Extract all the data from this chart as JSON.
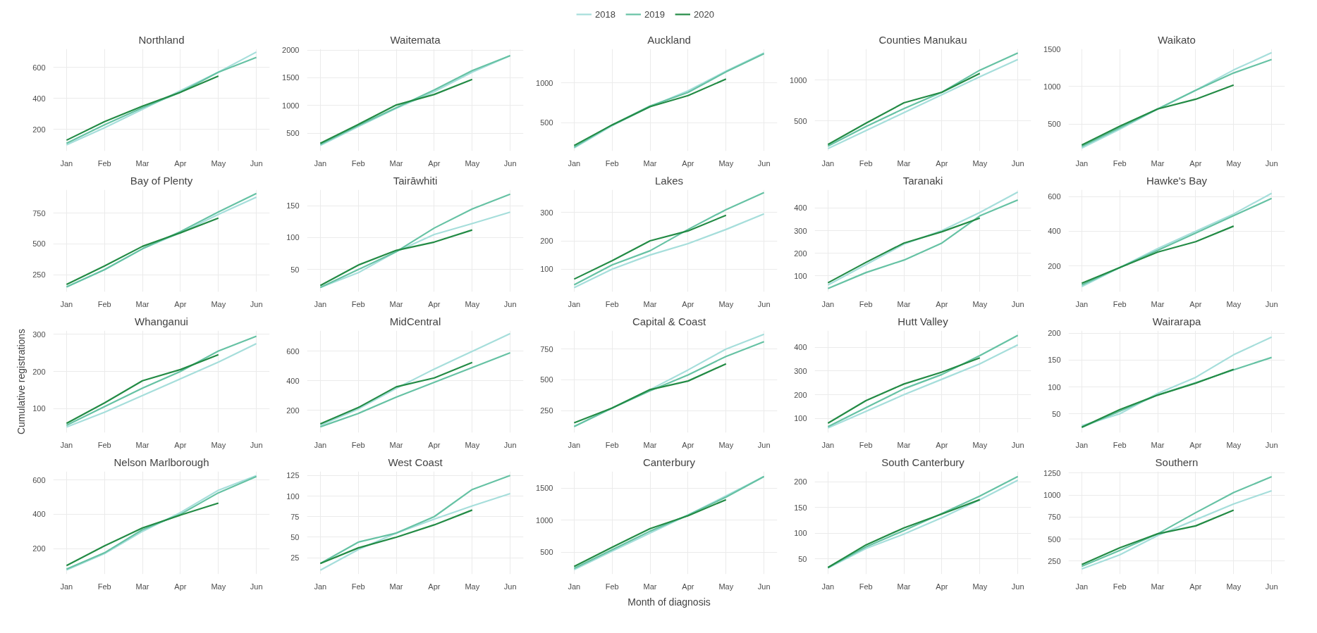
{
  "chart_data": [
    {
      "type": "line",
      "title": "Northland",
      "legend": "top",
      "grid": true,
      "categories": [
        "Jan",
        "Feb",
        "Mar",
        "Apr",
        "May",
        "Jun"
      ],
      "ylim": [
        60,
        720
      ],
      "yticks": [
        200,
        400,
        600
      ],
      "series": [
        {
          "name": "2018",
          "color": "#a6dedb",
          "values": [
            100,
            210,
            330,
            450,
            570,
            700
          ]
        },
        {
          "name": "2019",
          "color": "#66c2a4",
          "values": [
            110,
            230,
            340,
            440,
            570,
            665
          ]
        },
        {
          "name": "2020",
          "color": "#238b45",
          "values": [
            130,
            250,
            350,
            440,
            545,
            null
          ]
        }
      ]
    },
    {
      "type": "line",
      "title": "Waitemata",
      "grid": true,
      "categories": [
        "Jan",
        "Feb",
        "Mar",
        "Apr",
        "May",
        "Jun"
      ],
      "ylim": [
        180,
        2020
      ],
      "yticks": [
        500,
        1000,
        1500,
        2000
      ],
      "series": [
        {
          "color": "#a6dedb",
          "values": [
            280,
            620,
            950,
            1250,
            1600,
            1900
          ]
        },
        {
          "color": "#66c2a4",
          "values": [
            300,
            640,
            960,
            1280,
            1630,
            1900
          ]
        },
        {
          "color": "#238b45",
          "values": [
            320,
            660,
            1010,
            1200,
            1470,
            null
          ]
        }
      ]
    },
    {
      "type": "line",
      "title": "Auckland",
      "grid": true,
      "categories": [
        "Jan",
        "Feb",
        "Mar",
        "Apr",
        "May",
        "Jun"
      ],
      "ylim": [
        140,
        1430
      ],
      "yticks": [
        500,
        1000
      ],
      "series": [
        {
          "color": "#a6dedb",
          "values": [
            180,
            460,
            700,
            900,
            1150,
            1380
          ]
        },
        {
          "color": "#66c2a4",
          "values": [
            190,
            470,
            710,
            880,
            1140,
            1370
          ]
        },
        {
          "color": "#238b45",
          "values": [
            210,
            470,
            700,
            840,
            1050,
            null
          ]
        }
      ]
    },
    {
      "type": "line",
      "title": "Counties Manukau",
      "grid": true,
      "categories": [
        "Jan",
        "Feb",
        "Mar",
        "Apr",
        "May",
        "Jun"
      ],
      "ylim": [
        130,
        1380
      ],
      "yticks": [
        500,
        1000
      ],
      "series": [
        {
          "color": "#a6dedb",
          "values": [
            160,
            380,
            600,
            820,
            1040,
            1250
          ]
        },
        {
          "color": "#66c2a4",
          "values": [
            190,
            430,
            650,
            850,
            1120,
            1330
          ]
        },
        {
          "color": "#238b45",
          "values": [
            210,
            470,
            720,
            850,
            1080,
            null
          ]
        }
      ]
    },
    {
      "type": "line",
      "title": "Waikato",
      "grid": true,
      "categories": [
        "Jan",
        "Feb",
        "Mar",
        "Apr",
        "May",
        "Jun"
      ],
      "ylim": [
        140,
        1500
      ],
      "yticks": [
        500,
        1000,
        1500
      ],
      "series": [
        {
          "color": "#a6dedb",
          "values": [
            180,
            430,
            700,
            950,
            1220,
            1450
          ]
        },
        {
          "color": "#66c2a4",
          "values": [
            200,
            450,
            700,
            950,
            1180,
            1360
          ]
        },
        {
          "color": "#238b45",
          "values": [
            220,
            470,
            700,
            830,
            1020,
            null
          ]
        }
      ]
    },
    {
      "type": "line",
      "title": "Bay of Plenty",
      "grid": true,
      "categories": [
        "Jan",
        "Feb",
        "Mar",
        "Apr",
        "May",
        "Jun"
      ],
      "ylim": [
        110,
        940
      ],
      "yticks": [
        250,
        500,
        750
      ],
      "series": [
        {
          "color": "#a6dedb",
          "values": [
            150,
            290,
            460,
            590,
            740,
            880
          ]
        },
        {
          "color": "#66c2a4",
          "values": [
            150,
            290,
            460,
            600,
            760,
            910
          ]
        },
        {
          "color": "#238b45",
          "values": [
            170,
            320,
            480,
            590,
            710,
            null
          ]
        }
      ]
    },
    {
      "type": "line",
      "title": "Tairāwhiti",
      "grid": true,
      "categories": [
        "Jan",
        "Feb",
        "Mar",
        "Apr",
        "May",
        "Jun"
      ],
      "ylim": [
        15,
        175
      ],
      "yticks": [
        50,
        100,
        150
      ],
      "series": [
        {
          "color": "#a6dedb",
          "values": [
            22,
            45,
            78,
            105,
            122,
            140
          ]
        },
        {
          "color": "#66c2a4",
          "values": [
            22,
            50,
            78,
            115,
            145,
            168
          ]
        },
        {
          "color": "#238b45",
          "values": [
            25,
            57,
            80,
            93,
            112,
            null
          ]
        }
      ]
    },
    {
      "type": "line",
      "title": "Lakes",
      "grid": true,
      "categories": [
        "Jan",
        "Feb",
        "Mar",
        "Apr",
        "May",
        "Jun"
      ],
      "ylim": [
        20,
        380
      ],
      "yticks": [
        100,
        200,
        300
      ],
      "series": [
        {
          "color": "#a6dedb",
          "values": [
            35,
            100,
            150,
            190,
            240,
            295
          ]
        },
        {
          "color": "#66c2a4",
          "values": [
            45,
            115,
            165,
            240,
            310,
            370
          ]
        },
        {
          "color": "#238b45",
          "values": [
            65,
            130,
            200,
            235,
            290,
            null
          ]
        }
      ]
    },
    {
      "type": "line",
      "title": "Taranaki",
      "grid": true,
      "categories": [
        "Jan",
        "Feb",
        "Mar",
        "Apr",
        "May",
        "Jun"
      ],
      "ylim": [
        30,
        480
      ],
      "yticks": [
        100,
        200,
        300,
        400
      ],
      "series": [
        {
          "color": "#a6dedb",
          "values": [
            60,
            150,
            240,
            300,
            380,
            470
          ]
        },
        {
          "color": "#66c2a4",
          "values": [
            45,
            115,
            170,
            245,
            365,
            435
          ]
        },
        {
          "color": "#238b45",
          "values": [
            70,
            160,
            245,
            295,
            355,
            null
          ]
        }
      ]
    },
    {
      "type": "line",
      "title": "Hawke's Bay",
      "grid": true,
      "categories": [
        "Jan",
        "Feb",
        "Mar",
        "Apr",
        "May",
        "Jun"
      ],
      "ylim": [
        50,
        640
      ],
      "yticks": [
        200,
        400,
        600
      ],
      "series": [
        {
          "color": "#a6dedb",
          "values": [
            80,
            190,
            300,
            400,
            500,
            620
          ]
        },
        {
          "color": "#66c2a4",
          "values": [
            90,
            190,
            290,
            390,
            490,
            590
          ]
        },
        {
          "color": "#238b45",
          "values": [
            100,
            190,
            280,
            340,
            430,
            null
          ]
        }
      ]
    },
    {
      "type": "line",
      "title": "Whanganui",
      "ylabel": "Cumulative registrations",
      "grid": true,
      "categories": [
        "Jan",
        "Feb",
        "Mar",
        "Apr",
        "May",
        "Jun"
      ],
      "ylim": [
        35,
        310
      ],
      "yticks": [
        100,
        200,
        300
      ],
      "series": [
        {
          "color": "#a6dedb",
          "values": [
            50,
            90,
            135,
            180,
            225,
            275
          ]
        },
        {
          "color": "#66c2a4",
          "values": [
            55,
            105,
            155,
            200,
            255,
            295
          ]
        },
        {
          "color": "#238b45",
          "values": [
            60,
            115,
            175,
            205,
            245,
            null
          ]
        }
      ]
    },
    {
      "type": "line",
      "title": "MidCentral",
      "grid": true,
      "categories": [
        "Jan",
        "Feb",
        "Mar",
        "Apr",
        "May",
        "Jun"
      ],
      "ylim": [
        50,
        740
      ],
      "yticks": [
        200,
        400,
        600
      ],
      "series": [
        {
          "color": "#a6dedb",
          "values": [
            100,
            210,
            350,
            480,
            600,
            720
          ]
        },
        {
          "color": "#66c2a4",
          "values": [
            90,
            180,
            290,
            390,
            490,
            590
          ]
        },
        {
          "color": "#238b45",
          "values": [
            110,
            220,
            360,
            420,
            525,
            null
          ]
        }
      ]
    },
    {
      "type": "line",
      "title": "Capital & Coast",
      "grid": true,
      "categories": [
        "Jan",
        "Feb",
        "Mar",
        "Apr",
        "May",
        "Jun"
      ],
      "ylim": [
        70,
        900
      ],
      "yticks": [
        250,
        500,
        750
      ],
      "series": [
        {
          "color": "#a6dedb",
          "values": [
            120,
            270,
            420,
            580,
            750,
            870
          ]
        },
        {
          "color": "#66c2a4",
          "values": [
            120,
            270,
            410,
            540,
            690,
            810
          ]
        },
        {
          "color": "#238b45",
          "values": [
            150,
            270,
            420,
            490,
            630,
            null
          ]
        }
      ]
    },
    {
      "type": "line",
      "title": "Hutt Valley",
      "grid": true,
      "categories": [
        "Jan",
        "Feb",
        "Mar",
        "Apr",
        "May",
        "Jun"
      ],
      "ylim": [
        40,
        470
      ],
      "yticks": [
        100,
        200,
        300,
        400
      ],
      "series": [
        {
          "color": "#a6dedb",
          "values": [
            60,
            130,
            200,
            265,
            330,
            410
          ]
        },
        {
          "color": "#66c2a4",
          "values": [
            65,
            145,
            225,
            285,
            365,
            450
          ]
        },
        {
          "color": "#238b45",
          "values": [
            80,
            175,
            245,
            295,
            355,
            null
          ]
        }
      ]
    },
    {
      "type": "line",
      "title": "Wairarapa",
      "grid": true,
      "categories": [
        "Jan",
        "Feb",
        "Mar",
        "Apr",
        "May",
        "Jun"
      ],
      "ylim": [
        15,
        205
      ],
      "yticks": [
        50,
        100,
        150,
        200
      ],
      "series": [
        {
          "color": "#a6dedb",
          "values": [
            28,
            50,
            88,
            118,
            160,
            193
          ]
        },
        {
          "color": "#66c2a4",
          "values": [
            25,
            55,
            85,
            108,
            132,
            155
          ]
        },
        {
          "color": "#238b45",
          "values": [
            25,
            58,
            85,
            107,
            133,
            null
          ]
        }
      ]
    },
    {
      "type": "line",
      "title": "Nelson Marlborough",
      "grid": true,
      "categories": [
        "Jan",
        "Feb",
        "Mar",
        "Apr",
        "May",
        "Jun"
      ],
      "ylim": [
        50,
        650
      ],
      "yticks": [
        200,
        400,
        600
      ],
      "series": [
        {
          "color": "#a6dedb",
          "values": [
            75,
            170,
            300,
            410,
            540,
            625
          ]
        },
        {
          "color": "#66c2a4",
          "values": [
            80,
            175,
            310,
            400,
            525,
            620
          ]
        },
        {
          "color": "#238b45",
          "values": [
            100,
            215,
            320,
            395,
            465,
            null
          ]
        }
      ]
    },
    {
      "type": "line",
      "title": "West Coast",
      "grid": true,
      "categories": [
        "Jan",
        "Feb",
        "Mar",
        "Apr",
        "May",
        "Jun"
      ],
      "ylim": [
        5,
        130
      ],
      "yticks": [
        25,
        50,
        75,
        100,
        125
      ],
      "series": [
        {
          "color": "#a6dedb",
          "values": [
            10,
            35,
            55,
            72,
            88,
            103
          ]
        },
        {
          "color": "#66c2a4",
          "values": [
            18,
            44,
            55,
            75,
            108,
            125
          ]
        },
        {
          "color": "#238b45",
          "values": [
            18,
            37,
            50,
            65,
            83,
            null
          ]
        }
      ]
    },
    {
      "type": "line",
      "title": "Canterbury",
      "xlabel": "Month of diagnosis",
      "grid": true,
      "categories": [
        "Jan",
        "Feb",
        "Mar",
        "Apr",
        "May",
        "Jun"
      ],
      "ylim": [
        160,
        1760
      ],
      "yticks": [
        500,
        1000,
        1500
      ],
      "series": [
        {
          "color": "#a6dedb",
          "values": [
            230,
            520,
            800,
            1080,
            1380,
            1680
          ]
        },
        {
          "color": "#66c2a4",
          "values": [
            250,
            540,
            830,
            1080,
            1360,
            1680
          ]
        },
        {
          "color": "#238b45",
          "values": [
            280,
            580,
            870,
            1070,
            1320,
            null
          ]
        }
      ]
    },
    {
      "type": "line",
      "title": "South Canterbury",
      "grid": true,
      "categories": [
        "Jan",
        "Feb",
        "Mar",
        "Apr",
        "May",
        "Jun"
      ],
      "ylim": [
        20,
        220
      ],
      "yticks": [
        50,
        100,
        150,
        200
      ],
      "series": [
        {
          "color": "#a6dedb",
          "values": [
            32,
            70,
            98,
            130,
            165,
            203
          ]
        },
        {
          "color": "#66c2a4",
          "values": [
            33,
            73,
            105,
            138,
            172,
            210
          ]
        },
        {
          "color": "#238b45",
          "values": [
            33,
            77,
            110,
            137,
            165,
            null
          ]
        }
      ]
    },
    {
      "type": "line",
      "title": "Southern",
      "grid": true,
      "categories": [
        "Jan",
        "Feb",
        "Mar",
        "Apr",
        "May",
        "Jun"
      ],
      "ylim": [
        100,
        1270
      ],
      "yticks": [
        250,
        500,
        750,
        1000,
        1250
      ],
      "series": [
        {
          "color": "#a6dedb",
          "values": [
            160,
            320,
            540,
            720,
            900,
            1050
          ]
        },
        {
          "color": "#66c2a4",
          "values": [
            190,
            370,
            560,
            800,
            1030,
            1210
          ]
        },
        {
          "color": "#238b45",
          "values": [
            210,
            400,
            560,
            650,
            830,
            null
          ]
        }
      ]
    }
  ]
}
